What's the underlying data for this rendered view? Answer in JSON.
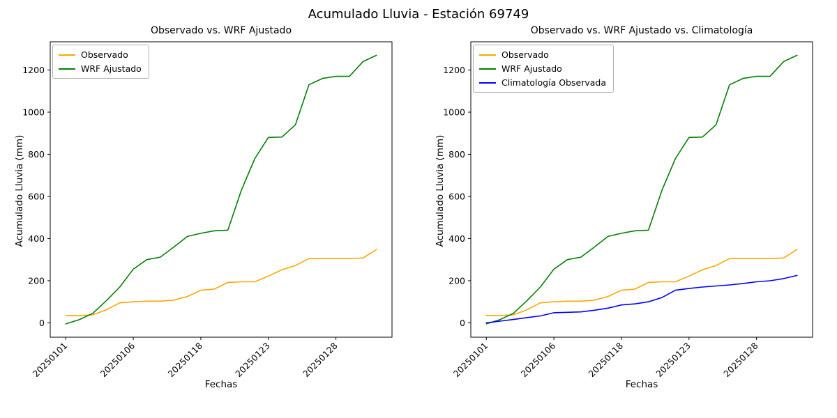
{
  "figure": {
    "suptitle": "Acumulado Lluvia - Estación 69749"
  },
  "chart_data": [
    {
      "type": "line",
      "title": "Observado vs. WRF Ajustado",
      "xlabel": "Fechas",
      "ylabel": "Acumulado Lluvia (mm)",
      "x_ticklabels": [
        "20250101",
        "20250106",
        "20250118",
        "20250123",
        "20250128"
      ],
      "x_tick_indices": [
        0,
        5,
        10,
        15,
        20
      ],
      "n_points": 24,
      "ylim": [
        -68,
        1334
      ],
      "y_ticks": [
        0,
        200,
        400,
        600,
        800,
        1000,
        1200
      ],
      "grid": false,
      "legend_position": "upper left",
      "series": [
        {
          "name": "Observado",
          "color": "#ffa500",
          "values": [
            35,
            35,
            38,
            62,
            95,
            100,
            103,
            103,
            108,
            125,
            155,
            160,
            192,
            195,
            195,
            222,
            252,
            272,
            305,
            305,
            305,
            305,
            308,
            348
          ]
        },
        {
          "name": "WRF Ajustado",
          "color": "#008000",
          "values": [
            -5,
            15,
            45,
            105,
            170,
            255,
            300,
            312,
            360,
            410,
            425,
            437,
            440,
            630,
            780,
            880,
            882,
            940,
            1130,
            1160,
            1170,
            1170,
            1240,
            1270
          ]
        }
      ]
    },
    {
      "type": "line",
      "title": "Observado vs. WRF Ajustado vs. Climatología",
      "xlabel": "Fechas",
      "ylabel": "Acumulado Lluvia (mm)",
      "x_ticklabels": [
        "20250101",
        "20250106",
        "20250118",
        "20250123",
        "20250128"
      ],
      "x_tick_indices": [
        0,
        5,
        10,
        15,
        20
      ],
      "n_points": 24,
      "ylim": [
        -68,
        1334
      ],
      "y_ticks": [
        0,
        200,
        400,
        600,
        800,
        1000,
        1200
      ],
      "grid": false,
      "legend_position": "upper left",
      "series": [
        {
          "name": "Observado",
          "color": "#ffa500",
          "values": [
            35,
            35,
            38,
            62,
            95,
            100,
            103,
            103,
            108,
            125,
            155,
            160,
            192,
            195,
            195,
            222,
            252,
            272,
            305,
            305,
            305,
            305,
            308,
            348
          ]
        },
        {
          "name": "WRF Ajustado",
          "color": "#008000",
          "values": [
            -5,
            15,
            45,
            105,
            170,
            255,
            300,
            312,
            360,
            410,
            425,
            437,
            440,
            630,
            780,
            880,
            882,
            940,
            1130,
            1160,
            1170,
            1170,
            1240,
            1270
          ]
        },
        {
          "name": "Climatología Observada",
          "color": "#0000ff",
          "values": [
            0,
            8,
            16,
            25,
            33,
            48,
            50,
            52,
            60,
            70,
            85,
            90,
            100,
            120,
            155,
            163,
            170,
            175,
            180,
            187,
            195,
            200,
            210,
            225
          ]
        }
      ]
    }
  ]
}
